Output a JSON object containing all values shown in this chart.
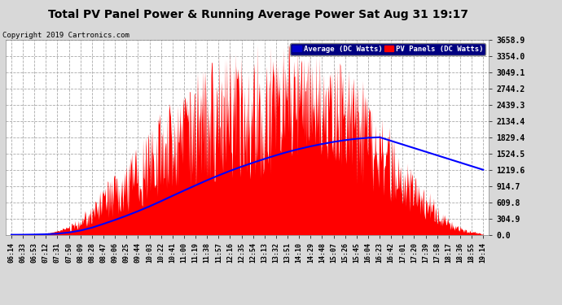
{
  "title": "Total PV Panel Power & Running Average Power Sat Aug 31 19:17",
  "copyright": "Copyright 2019 Cartronics.com",
  "legend_labels": [
    "Average (DC Watts)",
    "PV Panels (DC Watts)"
  ],
  "legend_colors": [
    "#0000ff",
    "#ff0000"
  ],
  "ymin": 0.0,
  "ymax": 3658.9,
  "yticks": [
    0.0,
    304.9,
    609.8,
    914.7,
    1219.6,
    1524.5,
    1829.4,
    2134.4,
    2439.3,
    2744.2,
    3049.1,
    3354.0,
    3658.9
  ],
  "fig_bg_color": "#d8d8d8",
  "plot_bg_color": "#ffffff",
  "grid_color": "#aaaaaa",
  "pv_color": "#ff0000",
  "avg_color": "#0000ff",
  "x_labels": [
    "06:14",
    "06:33",
    "06:53",
    "07:12",
    "07:31",
    "07:50",
    "08:09",
    "08:28",
    "08:47",
    "09:06",
    "09:25",
    "09:44",
    "10:03",
    "10:22",
    "10:41",
    "11:00",
    "11:19",
    "11:38",
    "11:57",
    "12:16",
    "12:35",
    "12:54",
    "13:13",
    "13:32",
    "13:51",
    "14:10",
    "14:29",
    "14:48",
    "15:07",
    "15:26",
    "15:45",
    "16:04",
    "16:23",
    "16:42",
    "17:01",
    "17:20",
    "17:39",
    "17:58",
    "18:17",
    "18:36",
    "18:55",
    "19:14"
  ],
  "pv_base": [
    2,
    5,
    15,
    30,
    80,
    180,
    350,
    600,
    900,
    1100,
    1350,
    1600,
    1900,
    2200,
    2500,
    2700,
    2900,
    3100,
    3200,
    3300,
    3350,
    3400,
    3500,
    3550,
    3580,
    3500,
    3450,
    3380,
    3300,
    3200,
    3000,
    2800,
    2500,
    2000,
    1500,
    1200,
    900,
    600,
    300,
    150,
    80,
    20
  ],
  "pv_spikes": [
    0,
    0,
    0,
    0,
    0,
    0,
    0,
    0,
    0,
    200,
    400,
    600,
    700,
    800,
    900,
    1000,
    900,
    800,
    700,
    600,
    500,
    400,
    500,
    600,
    700,
    600,
    500,
    400,
    300,
    200,
    200,
    200,
    100,
    100,
    100,
    100,
    100,
    100,
    50,
    50,
    30,
    0
  ]
}
